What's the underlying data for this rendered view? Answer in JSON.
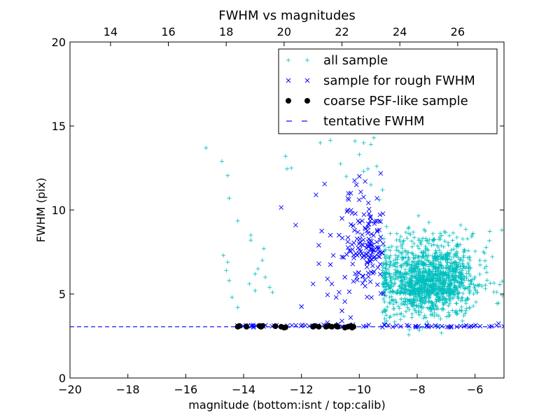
{
  "chart_data": {
    "type": "scatter",
    "title": "FWHM vs magnitudes",
    "xlabel": "magnitude (bottom:isnt / top:calib)",
    "ylabel": "FWHM (pix)",
    "xlim": [
      -20,
      -5
    ],
    "ylim": [
      0,
      20
    ],
    "x_ticks": [
      -20,
      -18,
      -16,
      -14,
      -12,
      -10,
      -8,
      -6
    ],
    "x_tick_labels": [
      "−20",
      "−18",
      "−16",
      "−14",
      "−12",
      "−10",
      "−8",
      "−6"
    ],
    "y_ticks": [
      0,
      5,
      10,
      15,
      20
    ],
    "y_tick_labels": [
      "0",
      "5",
      "10",
      "15",
      "20"
    ],
    "top_axis": {
      "xlim": [
        12.6,
        27.6
      ],
      "ticks": [
        14,
        16,
        18,
        20,
        22,
        24,
        26
      ],
      "tick_labels": [
        "14",
        "16",
        "18",
        "20",
        "22",
        "24",
        "26"
      ]
    },
    "grid": false,
    "legend_position": "top-right",
    "legend": [
      {
        "label": "all sample",
        "marker": "plus",
        "color": "#00bfbf"
      },
      {
        "label": "sample for rough FWHM",
        "marker": "x",
        "color": "#0000ff"
      },
      {
        "label": "coarse PSF-like sample",
        "marker": "dot",
        "color": "#000000"
      },
      {
        "label": "tentative FWHM",
        "marker": "dash",
        "color": "#0000ff"
      }
    ],
    "tentative_fwhm": 3.05,
    "series": [
      {
        "name": "all sample",
        "marker": "plus",
        "color": "#00bfbf",
        "points": [
          [
            -15.3,
            13.7
          ],
          [
            -14.75,
            12.9
          ],
          [
            -14.55,
            12.05
          ],
          [
            -14.5,
            10.7
          ],
          [
            -14.2,
            9.35
          ],
          [
            -14.7,
            7.3
          ],
          [
            -14.55,
            6.9
          ],
          [
            -14.6,
            6.4
          ],
          [
            -14.5,
            5.8
          ],
          [
            -14.4,
            4.8
          ],
          [
            -14.2,
            4.2
          ],
          [
            -13.75,
            8.5
          ],
          [
            -13.75,
            8.2
          ],
          [
            -13.3,
            7.7
          ],
          [
            -13.35,
            7.0
          ],
          [
            -13.5,
            6.5
          ],
          [
            -13.6,
            6.2
          ],
          [
            -13.8,
            5.6
          ],
          [
            -13.25,
            6.0
          ],
          [
            -13.1,
            5.4
          ],
          [
            -13.0,
            5.1
          ],
          [
            -13.6,
            5.2
          ],
          [
            -12.55,
            13.2
          ],
          [
            -12.5,
            12.45
          ],
          [
            -12.35,
            12.5
          ],
          [
            -11.35,
            14.0
          ],
          [
            -11.0,
            14.15
          ],
          [
            -10.65,
            12.75
          ],
          [
            -10.45,
            12.0
          ],
          [
            -10.15,
            14.1
          ],
          [
            -9.85,
            14.0
          ],
          [
            -9.6,
            13.9
          ],
          [
            -9.5,
            14.3
          ],
          [
            -9.85,
            12.3
          ],
          [
            -9.6,
            11.5
          ],
          [
            -9.2,
            11.2
          ],
          [
            -9.3,
            10.6
          ],
          [
            -9.4,
            12.6
          ],
          [
            -9.7,
            12.45
          ],
          [
            -10.0,
            13.3
          ]
        ],
        "cloud": {
          "count": 1500,
          "center": [
            -7.6,
            5.0
          ],
          "spread": [
            0.85,
            1.55
          ],
          "xlim": [
            -9.2,
            -5.0
          ],
          "ylim": [
            2.0,
            20.0
          ]
        }
      },
      {
        "name": "sample for rough FWHM",
        "marker": "x",
        "color": "#0000ff",
        "points": [
          [
            -12.7,
            10.15
          ],
          [
            -12.2,
            9.1
          ],
          [
            -11.5,
            10.9
          ],
          [
            -11.2,
            11.55
          ],
          [
            -11.3,
            8.75
          ],
          [
            -11.0,
            8.5
          ],
          [
            -11.4,
            7.9
          ],
          [
            -11.4,
            6.8
          ],
          [
            -11.0,
            6.75
          ],
          [
            -10.9,
            7.3
          ],
          [
            -11.1,
            5.9
          ],
          [
            -10.95,
            5.6
          ],
          [
            -11.6,
            5.6
          ],
          [
            -10.7,
            5.1
          ],
          [
            -11.1,
            4.95
          ],
          [
            -12.0,
            4.25
          ],
          [
            -10.5,
            4.55
          ],
          [
            -10.6,
            4.0
          ],
          [
            -10.3,
            3.6
          ],
          [
            -10.6,
            3.4
          ],
          [
            -11.1,
            3.3
          ],
          [
            -10.8,
            4.8
          ],
          [
            -10.5,
            6.0
          ],
          [
            -10.6,
            7.2
          ],
          [
            -10.4,
            8.1
          ],
          [
            -10.7,
            8.5
          ],
          [
            -10.4,
            10.0
          ],
          [
            -10.6,
            9.5
          ],
          [
            -10.3,
            11.0
          ],
          [
            -10.1,
            11.5
          ],
          [
            -10.0,
            12.0
          ],
          [
            -9.8,
            11.7
          ]
        ],
        "cloud": {
          "count": 150,
          "center": [
            -9.75,
            6.8
          ],
          "spread": [
            0.32,
            2.1
          ],
          "xlim": [
            -10.6,
            -9.15
          ],
          "ylim": [
            3.15,
            12.3
          ]
        },
        "baseline": {
          "count": 80,
          "xlim": [
            -14.3,
            -5.0
          ],
          "center": 3.1,
          "spread": 0.05
        }
      },
      {
        "name": "coarse PSF-like sample",
        "marker": "dot",
        "color": "#000000",
        "points": [
          [
            -14.2,
            3.05
          ],
          [
            -14.15,
            3.1
          ],
          [
            -13.9,
            3.05
          ],
          [
            -13.45,
            3.1
          ],
          [
            -13.4,
            3.05
          ],
          [
            -13.35,
            3.1
          ],
          [
            -12.9,
            3.08
          ],
          [
            -12.7,
            3.05
          ],
          [
            -12.6,
            3.0
          ],
          [
            -12.55,
            3.02
          ],
          [
            -11.6,
            3.05
          ],
          [
            -11.55,
            3.1
          ],
          [
            -11.4,
            3.05
          ],
          [
            -11.15,
            3.05
          ],
          [
            -11.05,
            3.1
          ],
          [
            -10.95,
            3.05
          ],
          [
            -10.8,
            3.1
          ],
          [
            -10.75,
            3.05
          ],
          [
            -10.5,
            3.0
          ],
          [
            -10.4,
            3.05
          ],
          [
            -10.3,
            3.1
          ],
          [
            -10.25,
            3.0
          ],
          [
            -10.2,
            3.05
          ]
        ]
      }
    ]
  }
}
